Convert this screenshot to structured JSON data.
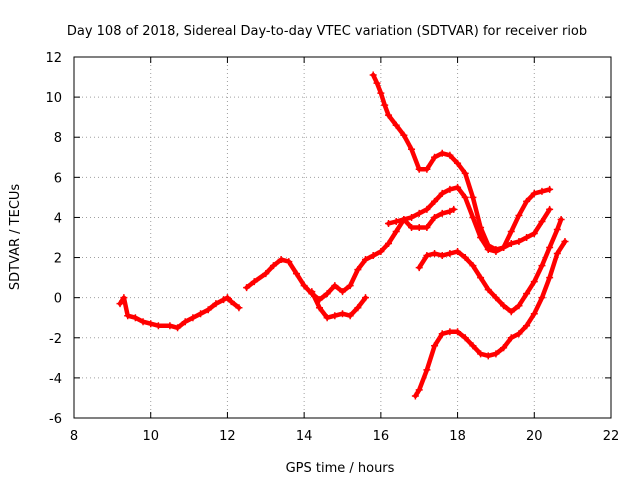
{
  "chart_data": {
    "type": "scatter",
    "title": "Day 108 of 2018, Sidereal Day-to-day VTEC variation (SDTVAR) for receiver riob",
    "xlabel": "GPS time / hours",
    "ylabel": "SDTVAR / TECUs",
    "xlim": [
      8,
      22
    ],
    "ylim": [
      -6,
      12
    ],
    "x_ticks": [
      8,
      10,
      12,
      14,
      16,
      18,
      20,
      22
    ],
    "y_ticks": [
      -6,
      -4,
      -2,
      0,
      2,
      4,
      6,
      8,
      10,
      12
    ],
    "grid": true,
    "marker": "plus",
    "series_color": "#ff0000",
    "series": [
      {
        "x": [
          9.2,
          9.3,
          9.4,
          9.6,
          9.8,
          10.0,
          10.2,
          10.5,
          10.7,
          10.9,
          11.1,
          11.3,
          11.5,
          11.7,
          11.9,
          12.0,
          12.1,
          12.3
        ],
        "y": [
          -0.3,
          0.0,
          -0.9,
          -1.0,
          -1.2,
          -1.3,
          -1.4,
          -1.4,
          -1.5,
          -1.2,
          -1.0,
          -0.8,
          -0.6,
          -0.3,
          -0.1,
          0.0,
          -0.2,
          -0.5
        ]
      },
      {
        "x": [
          12.5,
          12.7,
          13.0,
          13.2,
          13.4,
          13.6,
          13.8,
          14.0,
          14.2,
          14.4,
          14.6,
          14.8,
          15.0,
          15.2,
          15.4,
          15.6,
          15.8,
          16.0,
          16.2,
          16.4,
          16.6,
          16.8,
          17.0,
          17.2,
          17.4,
          17.6,
          17.8,
          18.0,
          18.2,
          18.4,
          18.6,
          18.8,
          19.0,
          19.2,
          19.4,
          19.6,
          19.8,
          20.0,
          20.2,
          20.4
        ],
        "y": [
          0.5,
          0.8,
          1.2,
          1.6,
          1.9,
          1.8,
          1.2,
          0.6,
          0.2,
          -0.1,
          0.2,
          0.6,
          0.3,
          0.6,
          1.4,
          1.9,
          2.1,
          2.3,
          2.7,
          3.3,
          3.9,
          4.0,
          4.2,
          4.4,
          4.8,
          5.2,
          5.4,
          5.5,
          5.0,
          4.0,
          3.0,
          2.4,
          2.3,
          2.5,
          2.7,
          2.8,
          3.0,
          3.2,
          3.8,
          4.4
        ]
      },
      {
        "x": [
          14.2,
          14.4,
          14.6,
          14.8,
          15.0,
          15.2,
          15.4,
          15.6
        ],
        "y": [
          0.3,
          -0.5,
          -1.0,
          -0.9,
          -0.8,
          -0.9,
          -0.5,
          0.0
        ]
      },
      {
        "x": [
          15.8,
          15.9,
          16.0,
          16.1,
          16.2,
          16.4,
          16.6,
          16.8,
          17.0,
          17.2,
          17.4,
          17.6,
          17.8,
          18.0,
          18.2,
          18.4,
          18.6,
          18.8,
          19.0,
          19.2,
          19.4,
          19.6,
          19.8,
          20.0,
          20.2,
          20.4
        ],
        "y": [
          11.1,
          10.7,
          10.2,
          9.6,
          9.1,
          8.6,
          8.1,
          7.4,
          6.4,
          6.4,
          7.0,
          7.2,
          7.1,
          6.7,
          6.2,
          5.0,
          3.5,
          2.6,
          2.4,
          2.5,
          3.3,
          4.1,
          4.8,
          5.2,
          5.3,
          5.4
        ]
      },
      {
        "x": [
          16.2,
          16.4,
          16.6,
          16.8,
          17.0,
          17.2,
          17.4,
          17.6,
          17.8,
          17.9
        ],
        "y": [
          3.7,
          3.8,
          3.9,
          3.5,
          3.5,
          3.5,
          4.0,
          4.2,
          4.3,
          4.4
        ]
      },
      {
        "x": [
          17.0,
          17.2,
          17.4,
          17.6,
          17.8,
          18.0,
          18.2,
          18.4,
          18.6,
          18.8,
          19.0,
          19.2,
          19.4,
          19.6,
          19.8,
          20.0,
          20.2,
          20.4,
          20.6,
          20.7
        ],
        "y": [
          1.5,
          2.1,
          2.2,
          2.1,
          2.2,
          2.3,
          2.0,
          1.6,
          1.0,
          0.4,
          0.0,
          -0.4,
          -0.7,
          -0.4,
          0.2,
          0.8,
          1.6,
          2.5,
          3.4,
          3.9
        ]
      },
      {
        "x": [
          16.9,
          17.0,
          17.2,
          17.4,
          17.6,
          17.8,
          18.0,
          18.2,
          18.4,
          18.6,
          18.8,
          19.0,
          19.2,
          19.4,
          19.6,
          19.8,
          20.0,
          20.2,
          20.4,
          20.6,
          20.8
        ],
        "y": [
          -4.9,
          -4.6,
          -3.6,
          -2.4,
          -1.8,
          -1.7,
          -1.7,
          -2.0,
          -2.4,
          -2.8,
          -2.9,
          -2.8,
          -2.5,
          -2.0,
          -1.8,
          -1.4,
          -0.8,
          0.0,
          1.0,
          2.2,
          2.8
        ]
      }
    ]
  }
}
